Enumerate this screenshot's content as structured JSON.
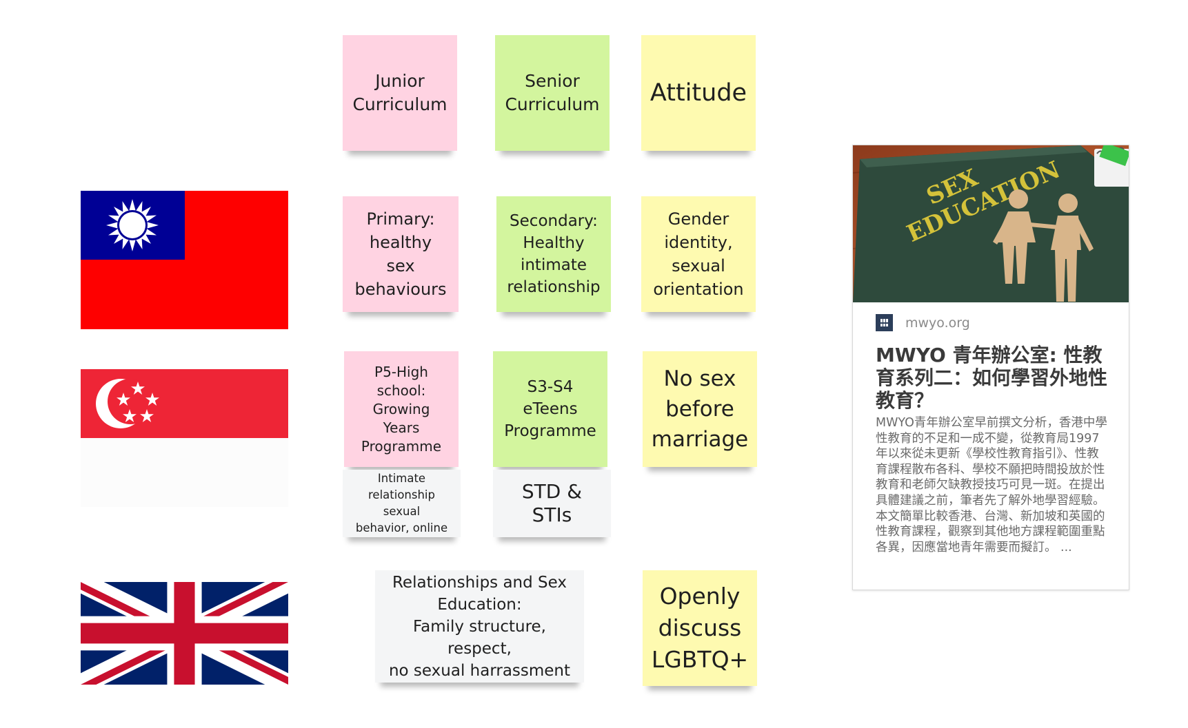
{
  "notes": {
    "junior_curriculum": "Junior\nCurriculum",
    "senior_curriculum": "Senior\nCurriculum",
    "attitude": "Attitude",
    "tw_primary": "Primary:\nhealthy\nsex\nbehaviours",
    "tw_secondary": "Secondary:\nHealthy\nintimate\nrelationship",
    "tw_attitude": "Gender\nidentity,\nsexual\norientation",
    "sg_primary": "P5-High\nschool:\nGrowing Years\nProgramme",
    "sg_secondary": "S3-S4\neTeens\nProgramme",
    "sg_attitude": "No sex\nbefore\nmarriage",
    "sg_primary_sub": "Intimate\nrelationship sexual\nbehavior, online",
    "sg_secondary_sub": "STD & STIs",
    "uk_curriculum": "Relationships and Sex\nEducation:\nFamily structure, respect,\nno sexual harrassment",
    "uk_attitude": "Openly\ndiscuss\nLGBTQ+"
  },
  "flags": [
    "taiwan-flag",
    "singapore-flag",
    "uk-flag"
  ],
  "link_card": {
    "image_text_line1": "SEX",
    "image_text_line2": "EDUCATION",
    "site": "mwyo.org",
    "title": "MWYO 青年辦公室: 性教育系列二：如何學習外地性教育？",
    "description": "MWYO青年辦公室早前撰文分析，香港中學性教育的不足和一成不變，從教育局1997年以來從未更新《學校性教育指引》、性教育課程散布各科、學校不願把時間投放於性教育和老師欠缺教授技巧可見一斑。在提出具體建議之前，筆者先了解外地學習經驗。本文簡單比較香港、台灣、新加坡和英國的性教育課程，觀察到其他地方課程範圍重點各異，因應當地青年需要而擬訂。 ..."
  },
  "colors": {
    "pink": "#ffd3e2",
    "green": "#d3f59e",
    "yellow": "#fefab0",
    "gray": "#f4f5f6"
  }
}
